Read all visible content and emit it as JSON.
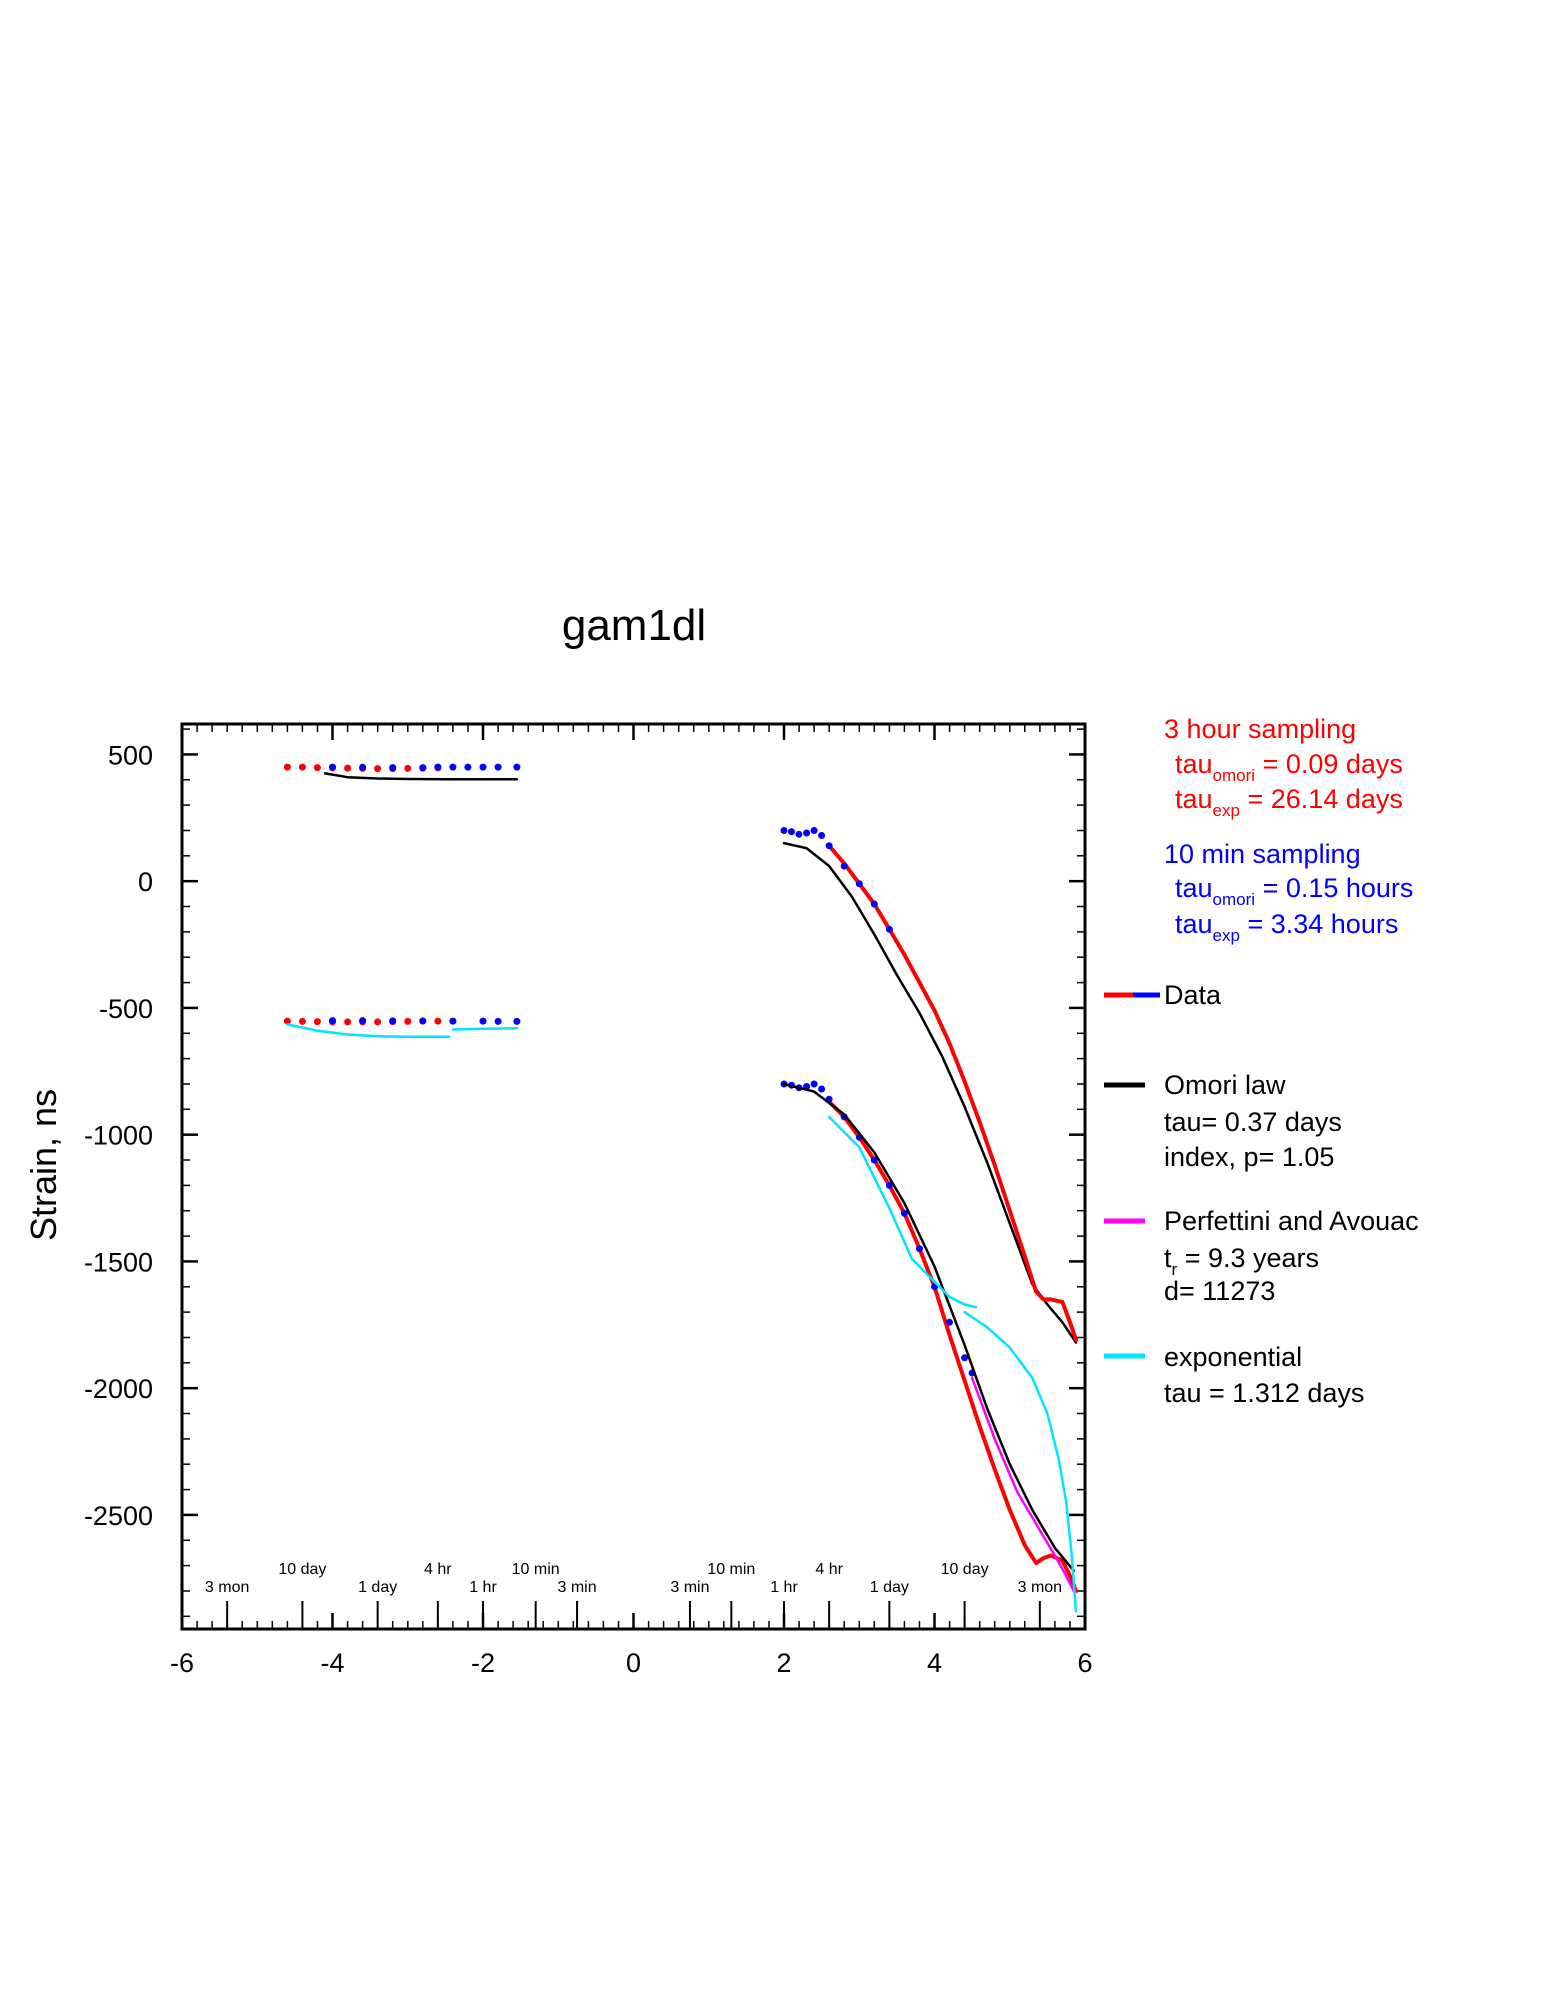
{
  "chart_data": {
    "type": "line",
    "title": "gam1dl",
    "xlabel": "",
    "ylabel": "Strain, ns",
    "xlim": [
      -6,
      6
    ],
    "ylim": [
      -2950,
      620
    ],
    "x_ticks": [
      -6,
      -4,
      -2,
      0,
      2,
      4,
      6
    ],
    "y_ticks": [
      500,
      0,
      -500,
      -1000,
      -1500,
      -2000,
      -2500
    ],
    "grid": false,
    "time_scale_ticks": [
      {
        "label": "3 mon",
        "x": -5.4,
        "row": "low"
      },
      {
        "label": "10 day",
        "x": -4.4,
        "row": "high"
      },
      {
        "label": "1 day",
        "x": -3.4,
        "row": "low"
      },
      {
        "label": "4 hr",
        "x": -2.6,
        "row": "high"
      },
      {
        "label": "1 hr",
        "x": -2.0,
        "row": "low"
      },
      {
        "label": "10 min",
        "x": -1.3,
        "row": "high"
      },
      {
        "label": "3 min",
        "x": -0.75,
        "row": "low"
      },
      {
        "label": "3 min",
        "x": 0.75,
        "row": "low"
      },
      {
        "label": "10 min",
        "x": 1.3,
        "row": "high"
      },
      {
        "label": "1 hr",
        "x": 2.0,
        "row": "low"
      },
      {
        "label": "4 hr",
        "x": 2.6,
        "row": "high"
      },
      {
        "label": "1 day",
        "x": 3.4,
        "row": "low"
      },
      {
        "label": "10 day",
        "x": 4.4,
        "row": "high"
      },
      {
        "label": "3 mon",
        "x": 5.4,
        "row": "low"
      }
    ],
    "series": [
      {
        "name": "Data",
        "kind": "points",
        "color": "#ff0000",
        "x": [
          -4.6,
          -4.4,
          -4.2,
          -4.0,
          -3.8,
          -3.6,
          -3.4,
          -3.2,
          -3.0,
          -2.8,
          -2.6
        ],
        "y": [
          450,
          450,
          448,
          447,
          446,
          445,
          444,
          444,
          445,
          446,
          447
        ]
      },
      {
        "name": "",
        "kind": "points",
        "color": "#0000ff",
        "x": [
          -4.0,
          -3.6,
          -3.2,
          -2.8,
          -2.6,
          -2.4,
          -2.2,
          -2.0,
          -1.8,
          -1.55
        ],
        "y": [
          450,
          449,
          448,
          448,
          450,
          450,
          450,
          450,
          450,
          450
        ]
      },
      {
        "name": "",
        "kind": "line",
        "color": "#000000",
        "x": [
          -4.1,
          -3.8,
          -3.4,
          -3.0,
          -2.5,
          -2.0,
          -1.55
        ],
        "y": [
          425,
          410,
          405,
          403,
          402,
          402,
          402
        ]
      },
      {
        "name": "",
        "kind": "points",
        "color": "#ff0000",
        "x": [
          -4.6,
          -4.4,
          -4.2,
          -4.0,
          -3.8,
          -3.6,
          -3.4,
          -3.2,
          -3.0,
          -2.8,
          -2.6
        ],
        "y": [
          -552,
          -553,
          -554,
          -555,
          -555,
          -555,
          -555,
          -554,
          -553,
          -552,
          -552
        ]
      },
      {
        "name": "",
        "kind": "points",
        "color": "#0000ff",
        "x": [
          -4.0,
          -3.6,
          -3.2,
          -2.8,
          -2.4,
          -2.0,
          -1.8,
          -1.55
        ],
        "y": [
          -550,
          -550,
          -551,
          -551,
          -552,
          -552,
          -553,
          -553
        ]
      },
      {
        "name": "",
        "kind": "line",
        "color": "#00e5ff",
        "x": [
          -4.6,
          -4.2,
          -3.8,
          -3.4,
          -3.0,
          -2.6,
          -2.45
        ],
        "y": [
          -565,
          -590,
          -605,
          -612,
          -614,
          -614,
          -614
        ]
      },
      {
        "name": "",
        "kind": "line",
        "color": "#00e5ff",
        "x": [
          -2.4,
          -2.0,
          -1.55
        ],
        "y": [
          -585,
          -582,
          -580
        ]
      },
      {
        "name": "",
        "kind": "line",
        "color": "#000000",
        "x": [
          2.0,
          2.3,
          2.6,
          2.9,
          3.2,
          3.5,
          3.8,
          4.1,
          4.4,
          4.7,
          5.0,
          5.3,
          5.5,
          5.7,
          5.88
        ],
        "y": [
          150,
          130,
          60,
          -60,
          -210,
          -370,
          -520,
          -690,
          -890,
          -1110,
          -1350,
          -1590,
          -1670,
          -1740,
          -1820
        ]
      },
      {
        "name": "",
        "kind": "line",
        "color": "#ff0000",
        "width": 4,
        "x": [
          2.6,
          2.8,
          3.0,
          3.2,
          3.4,
          3.6,
          3.8,
          4.0,
          4.2,
          4.4,
          4.6,
          4.8,
          5.0,
          5.2,
          5.35,
          5.45,
          5.55,
          5.7,
          5.8,
          5.88
        ],
        "y": [
          140,
          70,
          -10,
          -90,
          -190,
          -290,
          -400,
          -510,
          -640,
          -790,
          -950,
          -1120,
          -1300,
          -1480,
          -1620,
          -1650,
          -1650,
          -1660,
          -1740,
          -1810
        ]
      },
      {
        "name": "",
        "kind": "points",
        "color": "#0000ff",
        "x": [
          2.0,
          2.1,
          2.2,
          2.3,
          2.4,
          2.5,
          2.6,
          2.8,
          3.0,
          3.2,
          3.4
        ],
        "y": [
          200,
          195,
          185,
          190,
          200,
          180,
          140,
          60,
          -10,
          -90,
          -190
        ]
      },
      {
        "name": "",
        "kind": "line",
        "color": "#ff0000",
        "width": 4,
        "x": [
          2.6,
          2.8,
          3.0,
          3.2,
          3.4,
          3.6,
          3.8,
          4.0,
          4.2,
          4.4,
          4.6,
          4.8,
          5.0,
          5.2,
          5.35,
          5.45,
          5.55,
          5.7,
          5.8,
          5.88
        ],
        "y": [
          -870,
          -930,
          -1010,
          -1100,
          -1200,
          -1310,
          -1450,
          -1600,
          -1790,
          -1970,
          -2150,
          -2320,
          -2480,
          -2620,
          -2690,
          -2670,
          -2660,
          -2680,
          -2740,
          -2800
        ]
      },
      {
        "name": "",
        "kind": "points",
        "color": "#0000ff",
        "x": [
          2.0,
          2.1,
          2.2,
          2.3,
          2.4,
          2.5,
          2.6,
          2.8,
          3.0,
          3.2,
          3.4,
          3.6,
          3.8,
          4.0,
          4.2,
          4.4,
          4.5
        ],
        "y": [
          -800,
          -805,
          -815,
          -810,
          -800,
          -820,
          -860,
          -930,
          -1010,
          -1100,
          -1200,
          -1310,
          -1450,
          -1600,
          -1740,
          -1880,
          -1940
        ]
      },
      {
        "name": "",
        "kind": "line",
        "color": "#000000",
        "x": [
          2.0,
          2.4,
          2.8,
          3.2,
          3.6,
          4.0,
          4.4,
          4.7,
          5.0,
          5.3,
          5.6,
          5.85
        ],
        "y": [
          -800,
          -830,
          -920,
          -1070,
          -1270,
          -1520,
          -1830,
          -2080,
          -2300,
          -2480,
          -2630,
          -2720
        ]
      },
      {
        "name": "",
        "kind": "line",
        "color": "#ff00ff",
        "x": [
          4.5,
          4.8,
          5.1,
          5.4,
          5.6,
          5.75,
          5.85
        ],
        "y": [
          -1960,
          -2200,
          -2410,
          -2560,
          -2660,
          -2740,
          -2800
        ]
      },
      {
        "name": "",
        "kind": "line",
        "color": "#00e5ff",
        "x": [
          2.6,
          3.0,
          3.4,
          3.7,
          4.0,
          4.2,
          4.4,
          4.55
        ],
        "y": [
          -930,
          -1050,
          -1290,
          -1490,
          -1580,
          -1640,
          -1670,
          -1680
        ]
      },
      {
        "name": "",
        "kind": "line",
        "color": "#00e5ff",
        "x": [
          4.4,
          4.7,
          5.0,
          5.3,
          5.5,
          5.65,
          5.75,
          5.82,
          5.88
        ],
        "y": [
          -1700,
          -1760,
          -1840,
          -1960,
          -2100,
          -2280,
          -2450,
          -2650,
          -2880
        ]
      }
    ]
  },
  "fit_params": {
    "sampling_3h": {
      "heading": "3 hour sampling",
      "line1_main": "tau",
      "line1_sub": "omori",
      "line1_rest": " = 0.09 days",
      "line2_main": "tau",
      "line2_sub": "exp",
      "line2_rest": " = 26.14 days",
      "color": "#ff0000"
    },
    "sampling_10m": {
      "heading": "10 min sampling",
      "line1_main": "tau",
      "line1_sub": "omori",
      "line1_rest": " = 0.15 hours",
      "line2_main": "tau",
      "line2_sub": "exp",
      "line2_rest": " = 3.34 hours",
      "color": "#0000ff"
    }
  },
  "legend": {
    "data": {
      "label": "Data",
      "colors": [
        "#ff0000",
        "#0000ff"
      ]
    },
    "omori": {
      "label": "Omori law",
      "line2": "tau= 0.37 days",
      "line3": "index, p= 1.05",
      "color": "#000000"
    },
    "perfettini": {
      "label": "Perfettini and Avouac",
      "line2_main": "t",
      "line2_sub": "r",
      "line2_rest": " = 9.3 years",
      "line3": "d= 11273",
      "color": "#ff00ff"
    },
    "exponential": {
      "label": "exponential",
      "line2": "tau = 1.312 days",
      "color": "#00e5ff"
    }
  }
}
